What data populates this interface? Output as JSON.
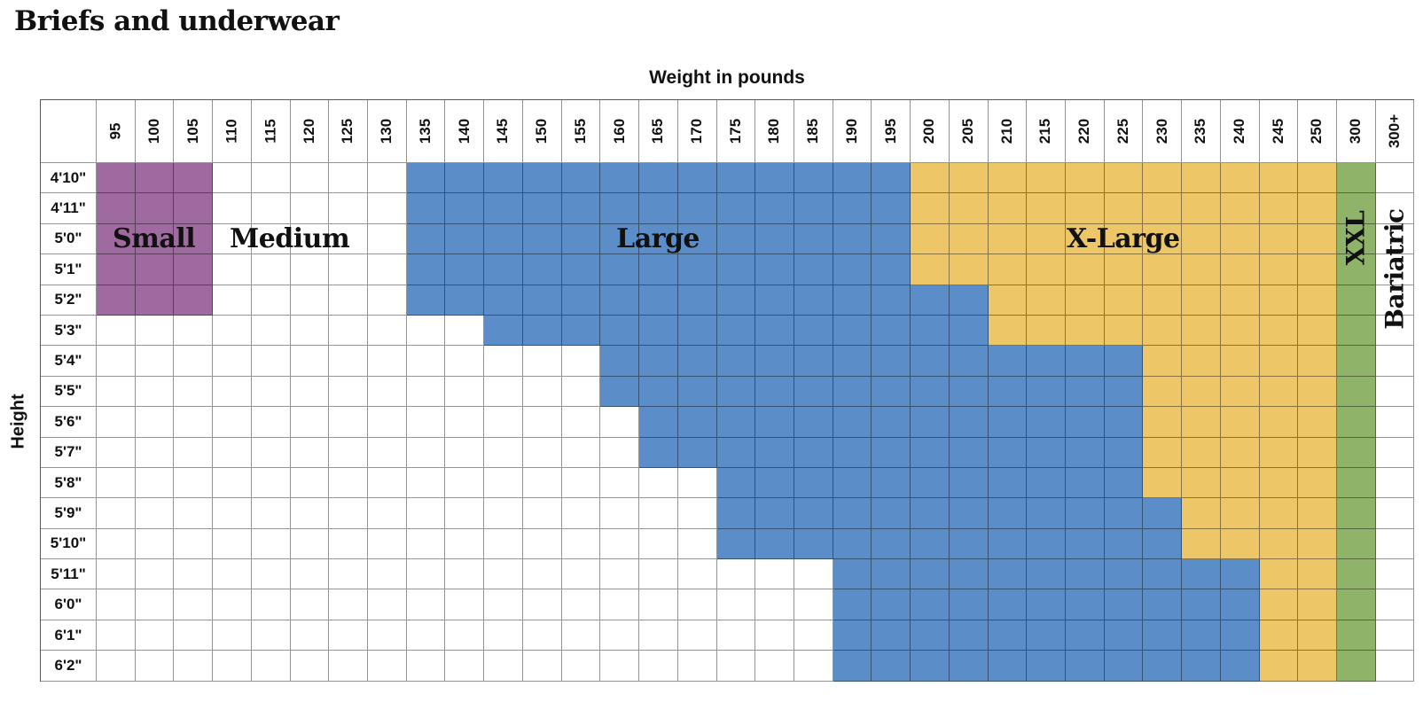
{
  "page": {
    "title": "Briefs and underwear"
  },
  "chart_data": {
    "type": "heatmap",
    "title": "Briefs and underwear",
    "x_axis_label": "Weight in pounds",
    "y_axis_label": "Height",
    "weight_columns": [
      "95",
      "100",
      "105",
      "110",
      "115",
      "120",
      "125",
      "130",
      "135",
      "140",
      "145",
      "150",
      "155",
      "160",
      "165",
      "170",
      "175",
      "180",
      "185",
      "190",
      "195",
      "200",
      "205",
      "210",
      "215",
      "220",
      "225",
      "230",
      "235",
      "240",
      "245",
      "250",
      "300",
      "300+"
    ],
    "sizes": {
      "small": {
        "label": "Small",
        "color": "#9e6a9f"
      },
      "medium": {
        "label": "Medium",
        "color": "#ffffff"
      },
      "large": {
        "label": "Large",
        "color": "#5b8ec9"
      },
      "xlarge": {
        "label": "X-Large",
        "color": "#edc668"
      },
      "xxl": {
        "label": "XXL",
        "color": "#8fb369"
      },
      "bariatric": {
        "label": "Bariatric",
        "color": "#ffffff"
      }
    },
    "rows": [
      {
        "height": "4'10\"",
        "small": [
          "95",
          "105"
        ],
        "medium": [
          "110",
          "130"
        ],
        "large": [
          "135",
          "195"
        ],
        "xlarge": [
          "200",
          "250"
        ],
        "xxl": "300",
        "bariatric": "300+"
      },
      {
        "height": "4'11\"",
        "small": [
          "95",
          "105"
        ],
        "medium": [
          "110",
          "130"
        ],
        "large": [
          "135",
          "195"
        ],
        "xlarge": [
          "200",
          "250"
        ],
        "xxl": "300",
        "bariatric": "300+"
      },
      {
        "height": "5'0\"",
        "small": [
          "95",
          "105"
        ],
        "medium": [
          "110",
          "130"
        ],
        "large": [
          "135",
          "195"
        ],
        "xlarge": [
          "200",
          "250"
        ],
        "xxl": "300",
        "bariatric": "300+"
      },
      {
        "height": "5'1\"",
        "small": [
          "95",
          "105"
        ],
        "medium": [
          "110",
          "130"
        ],
        "large": [
          "135",
          "195"
        ],
        "xlarge": [
          "200",
          "250"
        ],
        "xxl": "300",
        "bariatric": "300+"
      },
      {
        "height": "5'2\"",
        "small": [
          "95",
          "105"
        ],
        "medium": [
          "110",
          "130"
        ],
        "large": [
          "135",
          "205"
        ],
        "xlarge": [
          "210",
          "250"
        ],
        "xxl": "300",
        "bariatric": "300+"
      },
      {
        "height": "5'3\"",
        "small": null,
        "medium": [
          "95",
          "140"
        ],
        "large": [
          "145",
          "205"
        ],
        "xlarge": [
          "210",
          "250"
        ],
        "xxl": "300",
        "bariatric": "300+"
      },
      {
        "height": "5'4\"",
        "small": null,
        "medium": [
          "95",
          "155"
        ],
        "large": [
          "160",
          "225"
        ],
        "xlarge": [
          "230",
          "250"
        ],
        "xxl": "300",
        "bariatric": "300+"
      },
      {
        "height": "5'5\"",
        "small": null,
        "medium": [
          "95",
          "155"
        ],
        "large": [
          "160",
          "225"
        ],
        "xlarge": [
          "230",
          "250"
        ],
        "xxl": "300",
        "bariatric": "300+"
      },
      {
        "height": "5'6\"",
        "small": null,
        "medium": [
          "95",
          "160"
        ],
        "large": [
          "165",
          "225"
        ],
        "xlarge": [
          "230",
          "250"
        ],
        "xxl": "300",
        "bariatric": "300+"
      },
      {
        "height": "5'7\"",
        "small": null,
        "medium": [
          "95",
          "160"
        ],
        "large": [
          "165",
          "225"
        ],
        "xlarge": [
          "230",
          "250"
        ],
        "xxl": "300",
        "bariatric": "300+"
      },
      {
        "height": "5'8\"",
        "small": null,
        "medium": [
          "95",
          "170"
        ],
        "large": [
          "175",
          "225"
        ],
        "xlarge": [
          "230",
          "250"
        ],
        "xxl": "300",
        "bariatric": "300+"
      },
      {
        "height": "5'9\"",
        "small": null,
        "medium": [
          "95",
          "170"
        ],
        "large": [
          "175",
          "230"
        ],
        "xlarge": [
          "235",
          "250"
        ],
        "xxl": "300",
        "bariatric": "300+"
      },
      {
        "height": "5'10\"",
        "small": null,
        "medium": [
          "95",
          "170"
        ],
        "large": [
          "175",
          "230"
        ],
        "xlarge": [
          "235",
          "250"
        ],
        "xxl": "300",
        "bariatric": "300+"
      },
      {
        "height": "5'11\"",
        "small": null,
        "medium": [
          "95",
          "185"
        ],
        "large": [
          "190",
          "240"
        ],
        "xlarge": [
          "245",
          "250"
        ],
        "xxl": "300",
        "bariatric": "300+"
      },
      {
        "height": "6'0\"",
        "small": null,
        "medium": [
          "95",
          "185"
        ],
        "large": [
          "190",
          "240"
        ],
        "xlarge": [
          "245",
          "250"
        ],
        "xxl": "300",
        "bariatric": "300+"
      },
      {
        "height": "6'1\"",
        "small": null,
        "medium": [
          "95",
          "185"
        ],
        "large": [
          "190",
          "240"
        ],
        "xlarge": [
          "245",
          "250"
        ],
        "xxl": "300",
        "bariatric": "300+"
      },
      {
        "height": "6'2\"",
        "small": null,
        "medium": [
          "95",
          "185"
        ],
        "large": [
          "190",
          "240"
        ],
        "xlarge": [
          "245",
          "250"
        ],
        "xxl": "300",
        "bariatric": "300+"
      }
    ],
    "region_labels": [
      {
        "id": "small",
        "text": "Small",
        "orientation": "horizontal",
        "row_span": [
          "5'0\"",
          "5'0\""
        ],
        "col_span": [
          "95",
          "105"
        ]
      },
      {
        "id": "medium",
        "text": "Medium",
        "orientation": "horizontal",
        "row_span": [
          "5'0\"",
          "5'0\""
        ],
        "col_span": [
          "110",
          "125"
        ]
      },
      {
        "id": "large",
        "text": "Large",
        "orientation": "horizontal",
        "row_span": [
          "5'0\"",
          "5'0\""
        ],
        "col_span": [
          "135",
          "195"
        ]
      },
      {
        "id": "xlarge",
        "text": "X-Large",
        "orientation": "horizontal",
        "row_span": [
          "5'0\"",
          "5'0\""
        ],
        "col_span": [
          "200",
          "250"
        ]
      },
      {
        "id": "xxl",
        "text": "XXL",
        "orientation": "vertical",
        "row_span": [
          "4'11\"",
          "5'1\""
        ],
        "col_span": [
          "300",
          "300"
        ]
      },
      {
        "id": "bariatric",
        "text": "Bariatric",
        "orientation": "vertical",
        "row_span": [
          "4'11\"",
          "5'3\""
        ],
        "col_span": [
          "300+",
          "300+"
        ]
      }
    ]
  },
  "colors": {
    "gridline": "rgba(0,0,0,0.42)",
    "outer_border": "#555555",
    "text": "#111111",
    "background": "#ffffff"
  }
}
